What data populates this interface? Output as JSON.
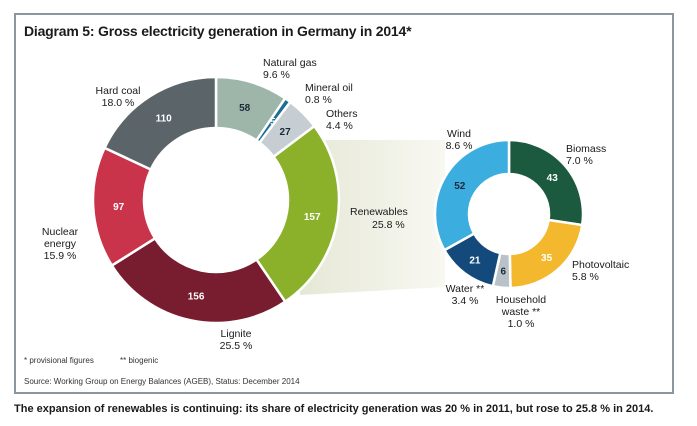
{
  "chart_data": [
    {
      "type": "pie",
      "title": "Diagram 5: Gross electricity generation in Germany in 2014*",
      "donut": true,
      "slices": [
        {
          "name": "Natural gas",
          "value": 58,
          "percent": "9.6 %",
          "color": "#9db6a9"
        },
        {
          "name": "Mineral oil",
          "value": 5,
          "percent": "0.8 %",
          "color": "#1b6d98"
        },
        {
          "name": "Others",
          "value": 27,
          "percent": "4.4 %",
          "color": "#c7ced3"
        },
        {
          "name": "Renewables",
          "value": 157,
          "percent": "25.8 %",
          "color": "#8bb02a"
        },
        {
          "name": "Lignite",
          "value": 156,
          "percent": "25.5 %",
          "color": "#781d2f"
        },
        {
          "name": "Nuclear energy",
          "value": 97,
          "percent": "15.9 %",
          "color": "#c9344b"
        },
        {
          "name": "Hard coal",
          "value": 110,
          "percent": "18.0 %",
          "color": "#5b6569"
        }
      ]
    },
    {
      "type": "pie",
      "donut": true,
      "slices": [
        {
          "name": "Biomass",
          "value": 43,
          "percent": "7.0 %",
          "color": "#1c5a3f"
        },
        {
          "name": "Photovoltaic",
          "value": 35,
          "percent": "5.8 %",
          "color": "#f3b82d"
        },
        {
          "name": "Household waste **",
          "value": 6,
          "percent": "1.0 %",
          "color": "#b9c2c9"
        },
        {
          "name": "Water **",
          "value": 21,
          "percent": "3.4 %",
          "color": "#134a7b"
        },
        {
          "name": "Wind",
          "value": 52,
          "percent": "8.6 %",
          "color": "#3badde"
        }
      ]
    }
  ],
  "footnotes": {
    "provisional": "* provisional figures",
    "biogenic": "** biogenic"
  },
  "source": "Source: Working Group on Energy Balances (AGEB), Status: December 2014",
  "caption": "The expansion of renewables is continuing: its share of electricity generation was 20 % in 2011, but rose to 25.8 % in 2014."
}
